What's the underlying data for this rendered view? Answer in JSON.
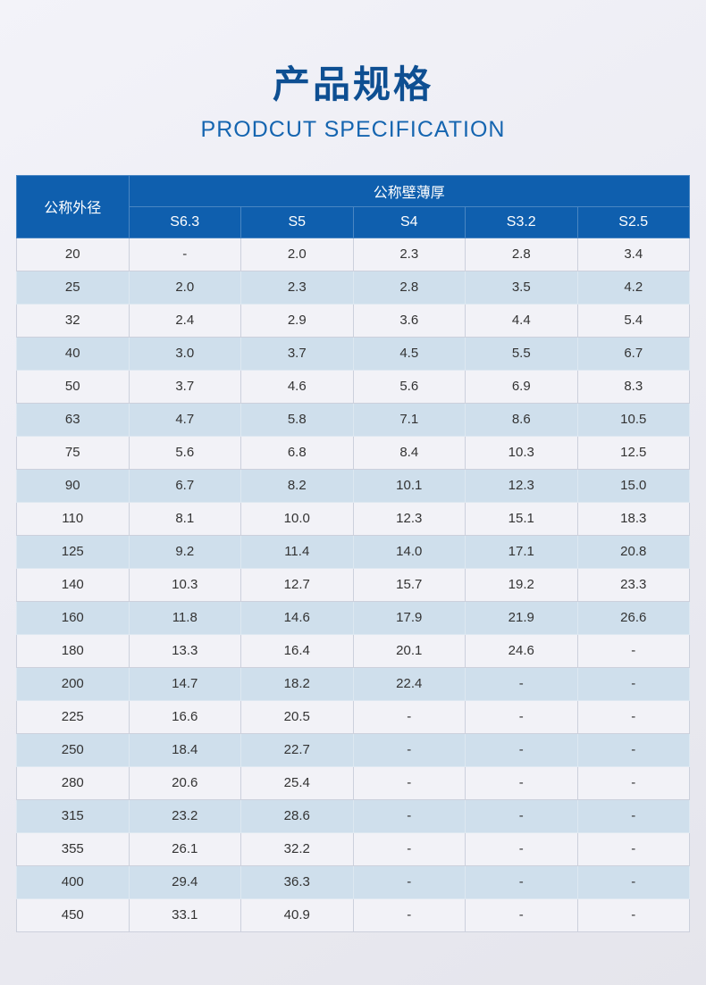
{
  "page": {
    "title": "产品规格",
    "subtitle": "PRODCUT SPECIFICATION"
  },
  "colors": {
    "page_bg_top": "#f3f3f9",
    "page_bg_mid": "#ebebf2",
    "page_bg_bottom": "#e5e5ec",
    "title": "#0e4f92",
    "subtitle": "#1565b0",
    "header_bg": "#0f5fae",
    "header_border": "#4a86c2",
    "row_light": "#f2f2f7",
    "row_blue": "#cfdfec",
    "cell_border": "#ccd0dc",
    "cell_border_blue": "#dde8f1",
    "text": "#333333"
  },
  "table": {
    "corner_header": "公称外径",
    "group_header": "公称壁薄厚",
    "columns": [
      "S6.3",
      "S5",
      "S4",
      "S3.2",
      "S2.5"
    ],
    "rows": [
      {
        "od": "20",
        "values": [
          "-",
          "2.0",
          "2.3",
          "2.8",
          "3.4"
        ]
      },
      {
        "od": "25",
        "values": [
          "2.0",
          "2.3",
          "2.8",
          "3.5",
          "4.2"
        ]
      },
      {
        "od": "32",
        "values": [
          "2.4",
          "2.9",
          "3.6",
          "4.4",
          "5.4"
        ]
      },
      {
        "od": "40",
        "values": [
          "3.0",
          "3.7",
          "4.5",
          "5.5",
          "6.7"
        ]
      },
      {
        "od": "50",
        "values": [
          "3.7",
          "4.6",
          "5.6",
          "6.9",
          "8.3"
        ]
      },
      {
        "od": "63",
        "values": [
          "4.7",
          "5.8",
          "7.1",
          "8.6",
          "10.5"
        ]
      },
      {
        "od": "75",
        "values": [
          "5.6",
          "6.8",
          "8.4",
          "10.3",
          "12.5"
        ]
      },
      {
        "od": "90",
        "values": [
          "6.7",
          "8.2",
          "10.1",
          "12.3",
          "15.0"
        ]
      },
      {
        "od": "110",
        "values": [
          "8.1",
          "10.0",
          "12.3",
          "15.1",
          "18.3"
        ]
      },
      {
        "od": "125",
        "values": [
          "9.2",
          "11.4",
          "14.0",
          "17.1",
          "20.8"
        ]
      },
      {
        "od": "140",
        "values": [
          "10.3",
          "12.7",
          "15.7",
          "19.2",
          "23.3"
        ]
      },
      {
        "od": "160",
        "values": [
          "11.8",
          "14.6",
          "17.9",
          "21.9",
          "26.6"
        ]
      },
      {
        "od": "180",
        "values": [
          "13.3",
          "16.4",
          "20.1",
          "24.6",
          "-"
        ]
      },
      {
        "od": "200",
        "values": [
          "14.7",
          "18.2",
          "22.4",
          "-",
          "-"
        ]
      },
      {
        "od": "225",
        "values": [
          "16.6",
          "20.5",
          "-",
          "-",
          "-"
        ]
      },
      {
        "od": "250",
        "values": [
          "18.4",
          "22.7",
          "-",
          "-",
          "-"
        ]
      },
      {
        "od": "280",
        "values": [
          "20.6",
          "25.4",
          "-",
          "-",
          "-"
        ]
      },
      {
        "od": "315",
        "values": [
          "23.2",
          "28.6",
          "-",
          "-",
          "-"
        ]
      },
      {
        "od": "355",
        "values": [
          "26.1",
          "32.2",
          "-",
          "-",
          "-"
        ]
      },
      {
        "od": "400",
        "values": [
          "29.4",
          "36.3",
          "-",
          "-",
          "-"
        ]
      },
      {
        "od": "450",
        "values": [
          "33.1",
          "40.9",
          "-",
          "-",
          "-"
        ]
      }
    ]
  }
}
